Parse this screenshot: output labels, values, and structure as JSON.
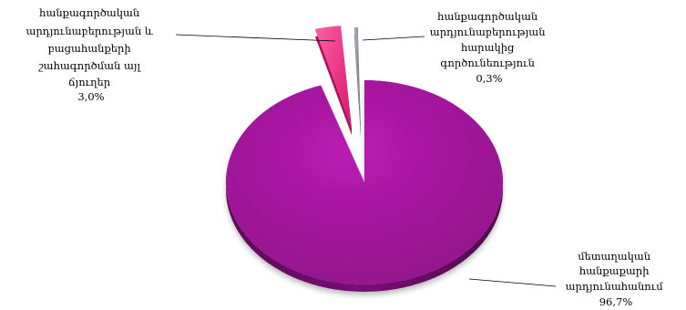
{
  "chart_data": {
    "type": "pie",
    "style": "3d-exploded",
    "title": "",
    "slices": [
      {
        "label_lines": [
          "մետաղական",
          "հանքաքարի",
          "արդյունահանում"
        ],
        "value_label": "96,7%",
        "value": 96.7,
        "color": "#a0139a"
      },
      {
        "label_lines": [
          "հանքագործական",
          "արդյունաբերության և",
          "բացահանքերի",
          "շահագործման այլ",
          "ճյուղեր"
        ],
        "value_label": "3,0%",
        "value": 3.0,
        "color": "#f0287f"
      },
      {
        "label_lines": [
          "հանքագործական",
          "արդյունաբերության",
          "հարակից",
          "գործունեություն"
        ],
        "value_label": "0,3%",
        "value": 0.3,
        "color": "#8a8a9a"
      }
    ]
  }
}
